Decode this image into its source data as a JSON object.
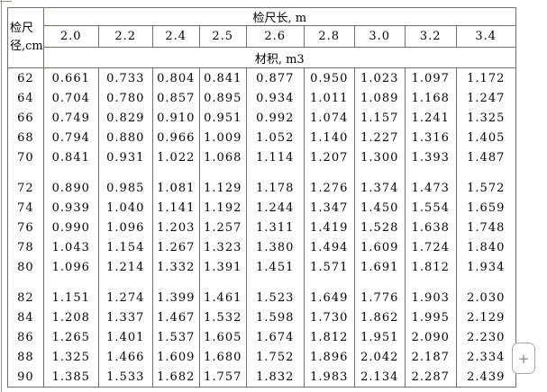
{
  "chart_data": {
    "type": "table",
    "corner_header_line1": "检尺",
    "corner_header_line2": "径,cm",
    "length_header": "检尺长, m",
    "columns": [
      "2.0",
      "2.2",
      "2.4",
      "2.5",
      "2.6",
      "2.8",
      "3.0",
      "3.2",
      "3.4"
    ],
    "unit_header": "材积, m3",
    "row_groups": [
      [
        {
          "d": "62",
          "v": [
            "0.661",
            "0.733",
            "0.804",
            "0.841",
            "0.877",
            "0.950",
            "1.023",
            "1.097",
            "1.172"
          ]
        },
        {
          "d": "64",
          "v": [
            "0.704",
            "0.780",
            "0.857",
            "0.895",
            "0.934",
            "1.011",
            "1.089",
            "1.168",
            "1.247"
          ]
        },
        {
          "d": "66",
          "v": [
            "0.749",
            "0.829",
            "0.910",
            "0.951",
            "0.992",
            "1.074",
            "1.157",
            "1.241",
            "1.325"
          ]
        },
        {
          "d": "68",
          "v": [
            "0.794",
            "0.880",
            "0.966",
            "1.009",
            "1.052",
            "1.140",
            "1.227",
            "1.316",
            "1.405"
          ]
        },
        {
          "d": "70",
          "v": [
            "0.841",
            "0.931",
            "1.022",
            "1.068",
            "1.114",
            "1.207",
            "1.300",
            "1.393",
            "1.487"
          ]
        }
      ],
      [
        {
          "d": "72",
          "v": [
            "0.890",
            "0.985",
            "1.081",
            "1.129",
            "1.178",
            "1.276",
            "1.374",
            "1.473",
            "1.572"
          ]
        },
        {
          "d": "74",
          "v": [
            "0.939",
            "1.040",
            "1.141",
            "1.192",
            "1.244",
            "1.347",
            "1.450",
            "1.554",
            "1.659"
          ]
        },
        {
          "d": "76",
          "v": [
            "0.990",
            "1.096",
            "1.203",
            "1.257",
            "1.311",
            "1.419",
            "1.528",
            "1.638",
            "1.748"
          ]
        },
        {
          "d": "78",
          "v": [
            "1.043",
            "1.154",
            "1.267",
            "1.323",
            "1.380",
            "1.494",
            "1.609",
            "1.724",
            "1.840"
          ]
        },
        {
          "d": "80",
          "v": [
            "1.096",
            "1.214",
            "1.332",
            "1.391",
            "1.451",
            "1.571",
            "1.691",
            "1.812",
            "1.934"
          ]
        }
      ],
      [
        {
          "d": "82",
          "v": [
            "1.151",
            "1.274",
            "1.399",
            "1.461",
            "1.523",
            "1.649",
            "1.776",
            "1.903",
            "2.030"
          ]
        },
        {
          "d": "84",
          "v": [
            "1.208",
            "1.337",
            "1.467",
            "1.532",
            "1.598",
            "1.730",
            "1.862",
            "1.995",
            "2.129"
          ]
        },
        {
          "d": "86",
          "v": [
            "1.265",
            "1.401",
            "1.537",
            "1.605",
            "1.674",
            "1.812",
            "1.951",
            "2.090",
            "2.230"
          ]
        },
        {
          "d": "88",
          "v": [
            "1.325",
            "1.466",
            "1.609",
            "1.680",
            "1.752",
            "1.896",
            "2.042",
            "2.187",
            "2.334"
          ]
        },
        {
          "d": "90",
          "v": [
            "1.385",
            "1.533",
            "1.682",
            "1.757",
            "1.832",
            "1.983",
            "2.134",
            "2.287",
            "2.439"
          ]
        }
      ]
    ]
  },
  "expand_button": {
    "label": "+"
  },
  "colors": {
    "table_border": "#6f6f65",
    "text": "#000000",
    "control_border": "#a8a8a2",
    "control_text": "#868686",
    "background": "#ffffff"
  }
}
